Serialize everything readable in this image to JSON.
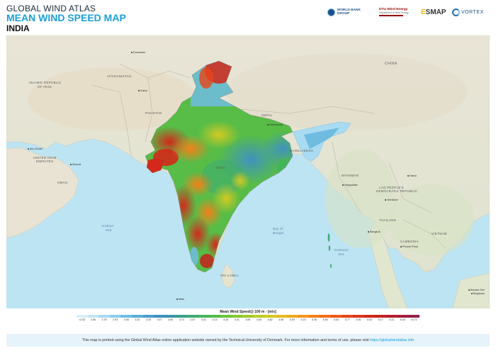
{
  "header": {
    "title_line1": "GLOBAL WIND ATLAS",
    "title_line2": "MEAN WIND SPEED MAP",
    "title_line3": "INDIA"
  },
  "logos": {
    "world_bank": "WORLD BANK GROUP",
    "dtu_line1": "DTU Wind Energy",
    "dtu_line2": "Department of Wind Energy",
    "esmap_e": "E",
    "esmap_rest": "SMAP",
    "vortex": "VORTEX"
  },
  "map": {
    "country_labels": [
      {
        "text": "CHINA",
        "name": "label-china"
      },
      {
        "text": "AFGHANISTAN",
        "name": "label-afghanistan"
      },
      {
        "text": "ISLAMIC REPUBLIC",
        "name": "label-iran-1"
      },
      {
        "text": "OF IRAN",
        "name": "label-iran-2"
      },
      {
        "text": "PAKISTAN",
        "name": "label-pakistan"
      },
      {
        "text": "NEPAL",
        "name": "label-nepal"
      },
      {
        "text": "BANGLADESH",
        "name": "label-bangladesh"
      },
      {
        "text": "MYANMAR",
        "name": "label-myanmar"
      },
      {
        "text": "THAILAND",
        "name": "label-thailand"
      },
      {
        "text": "VIETNAM",
        "name": "label-vietnam"
      },
      {
        "text": "LAO PEOPLE'S",
        "name": "label-laos-1"
      },
      {
        "text": "DEMOCRATIC REPUBLIC",
        "name": "label-laos-2"
      },
      {
        "text": "CAMBODIA",
        "name": "label-cambodia"
      },
      {
        "text": "OMAN",
        "name": "label-oman"
      },
      {
        "text": "UNITED ARAB",
        "name": "label-uae-1"
      },
      {
        "text": "EMIRATES",
        "name": "label-uae-2"
      },
      {
        "text": "INDIA",
        "name": "label-india"
      },
      {
        "text": "SRI LANKA",
        "name": "label-srilanka"
      }
    ],
    "sea_labels": [
      {
        "text": "Arabian",
        "name": "sea-arabian-1"
      },
      {
        "text": "Sea",
        "name": "sea-arabian-2"
      },
      {
        "text": "Bay of",
        "name": "sea-bengal-1"
      },
      {
        "text": "Bengal",
        "name": "sea-bengal-2"
      },
      {
        "text": "Andaman",
        "name": "sea-andaman-1"
      },
      {
        "text": "Sea",
        "name": "sea-andaman-2"
      }
    ],
    "cities": [
      {
        "text": "Dushanbe",
        "name": "city-dushanbe"
      },
      {
        "text": "Kabul",
        "name": "city-kabul"
      },
      {
        "text": "Abu Dhabi",
        "name": "city-abu-dhabi"
      },
      {
        "text": "Muscat",
        "name": "city-muscat"
      },
      {
        "text": "Kathmandu",
        "name": "city-kathmandu"
      },
      {
        "text": "Naypyidaw",
        "name": "city-naypyidaw"
      },
      {
        "text": "Hanoi",
        "name": "city-hanoi"
      },
      {
        "text": "Vientiane",
        "name": "city-vientiane"
      },
      {
        "text": "Bangkok",
        "name": "city-bangkok"
      },
      {
        "text": "Phnom Penh",
        "name": "city-phnom-penh"
      },
      {
        "text": "Male",
        "name": "city-male"
      },
      {
        "text": "Bandar Seri",
        "name": "city-bandar-1"
      },
      {
        "text": "Begawan",
        "name": "city-bandar-2"
      }
    ]
  },
  "legend": {
    "title": "Mean Wind Speed@ 100 m - [m/s]",
    "ticks": [
      "<2.52",
      "2.66",
      "2.78",
      "2.93",
      "3.08",
      "3.20",
      "3.33",
      "3.47",
      "3.60",
      "3.74",
      "3.87",
      "4.01",
      "4.14",
      "4.28",
      "4.41",
      "4.55",
      "4.69",
      "4.82",
      "4.96",
      "5.09",
      "5.23",
      "5.36",
      "5.50",
      "5.63",
      "5.77",
      "5.90",
      "6.04",
      "6.17",
      "6.31",
      "6.44",
      ">6.71"
    ],
    "colors": [
      "#dbeff8",
      "#c4e6f5",
      "#a9dbf2",
      "#8ccdec",
      "#6fbde3",
      "#58aed8",
      "#4a9fcf",
      "#3f92c0",
      "#3a94a8",
      "#39a08d",
      "#3dab72",
      "#45b55a",
      "#57bd47",
      "#6dc43a",
      "#86c930",
      "#a0cc2a",
      "#bbcd26",
      "#d2c923",
      "#e5bd20",
      "#efab1d",
      "#f4961b",
      "#f58019",
      "#f36c17",
      "#ef5816",
      "#e84516",
      "#de3618",
      "#d2291a",
      "#c4211f",
      "#b51e2a",
      "#a41e3a",
      "#932149"
    ]
  },
  "footer": {
    "text": "This map is printed using the Global Wind Atlas online application website owned by the Technical University of Denmark. For more information and terms of use, please visit ",
    "link": "https://globalwindatlas.info"
  }
}
